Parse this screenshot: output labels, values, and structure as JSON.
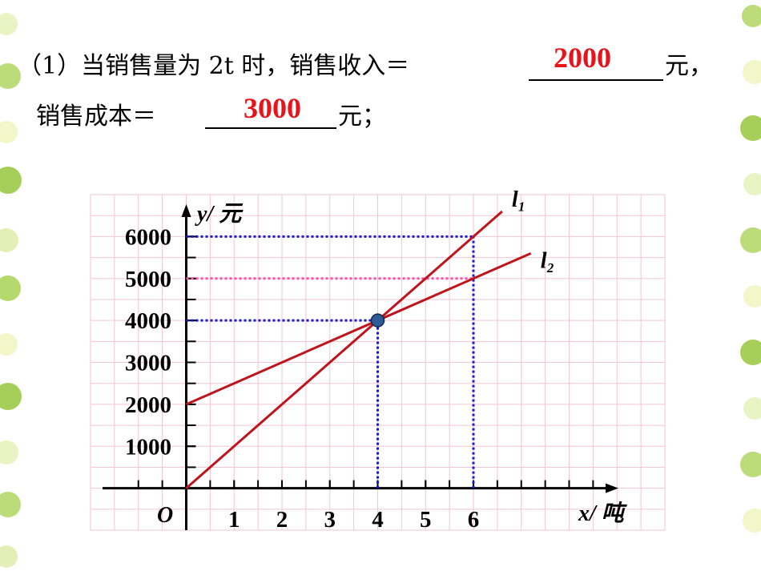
{
  "question": {
    "line1": "（1）当销售量为 2t 时，销售收入＝",
    "answer1": "2000",
    "unit1": "元，",
    "line2": "销售成本＝",
    "answer2": "3000",
    "unit2": "元；"
  },
  "chart_data": {
    "type": "line",
    "x_label": "x/ 吨",
    "y_label": "y/ 元",
    "origin_label": "O",
    "xlim": [
      -2,
      10
    ],
    "ylim": [
      -1000,
      7000
    ],
    "xticks": [
      1,
      2,
      3,
      4,
      5,
      6
    ],
    "yticks": [
      1000,
      2000,
      3000,
      4000,
      5000,
      6000
    ],
    "grid": true,
    "series": [
      {
        "name": "l₁",
        "color": "#c0141c",
        "x": [
          0,
          6.6
        ],
        "values": [
          0,
          6600
        ]
      },
      {
        "name": "l₂",
        "color": "#c0141c",
        "x": [
          0,
          7.2
        ],
        "values": [
          2000,
          5600
        ]
      }
    ],
    "point": {
      "x": 4,
      "y": 4000,
      "color": "#2e5a96"
    },
    "h_guides": [
      {
        "x": 6,
        "y": 6000,
        "color": "#1a1acc"
      },
      {
        "x": 6,
        "y": 5000,
        "color": "#ff4fa8"
      },
      {
        "x": 4,
        "y": 4000,
        "color": "#1a1acc"
      }
    ],
    "v_guides": [
      {
        "x": 4,
        "y": 4000,
        "color": "#1a1acc"
      },
      {
        "x": 6,
        "y": 6000,
        "color": "#1a1acc"
      }
    ]
  }
}
